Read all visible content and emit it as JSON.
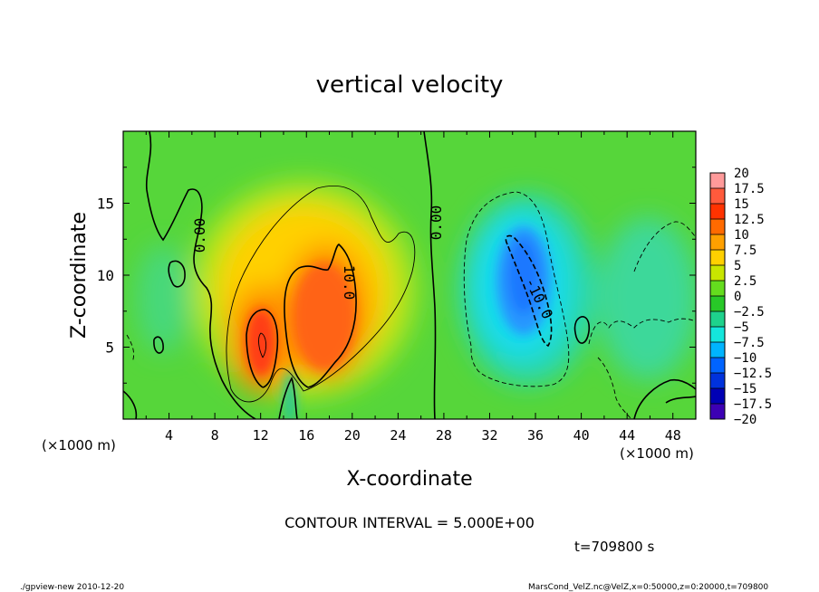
{
  "chart_data": {
    "type": "heatmap",
    "title": "vertical velocity",
    "xlabel": "X-coordinate",
    "ylabel": "Z-coordinate",
    "x_unit_label": "(×1000 m)",
    "y_unit_label": "(×1000 m)",
    "xlim": [
      0,
      50
    ],
    "ylim": [
      0,
      20
    ],
    "x_ticks": [
      4,
      8,
      12,
      16,
      20,
      24,
      28,
      32,
      36,
      40,
      44,
      48
    ],
    "y_ticks": [
      5,
      10,
      15
    ],
    "contour_interval_text": "CONTOUR INTERVAL = 5.000E+00",
    "contour_labels": [
      {
        "text": "0.00",
        "x": 7.3,
        "z": 13.0
      },
      {
        "text": "0.00",
        "x": 27.6,
        "z": 13.6
      },
      {
        "text": "10.0",
        "x": 19.7,
        "z": 9.0
      },
      {
        "text": "-10.0",
        "x": 36.3,
        "z": 7.8
      }
    ],
    "features": [
      {
        "name": "updraft core",
        "x_center": 12.2,
        "z_center": 5.5,
        "max_value": 15
      },
      {
        "name": "updraft",
        "x_center": 18.0,
        "z_center": 7.5,
        "max_value": 12.5
      },
      {
        "name": "downdraft",
        "x_center": 35.0,
        "z_center": 8.0,
        "min_value": -12.5
      }
    ],
    "colorbar": {
      "levels": [
        "20",
        "17.5",
        "15",
        "12.5",
        "10",
        "7.5",
        "5",
        "2.5",
        "0",
        "−2.5",
        "−5",
        "−7.5",
        "−10",
        "−12.5",
        "−15",
        "−17.5",
        "−20"
      ],
      "colors": [
        "#ff9a9a",
        "#ff5a3c",
        "#ff3300",
        "#ff6a00",
        "#ffa000",
        "#ffd000",
        "#c8e600",
        "#64dc1e",
        "#28c828",
        "#1ed28c",
        "#14e6dc",
        "#00b4ff",
        "#0064ff",
        "#0032dc",
        "#0000b4",
        "#3c00b4",
        "#6e00b4"
      ]
    }
  },
  "footer": {
    "time_text": "t=709800 s",
    "program_text": "./gpview-new  2010-12-20",
    "file_text": "MarsCond_VelZ.nc@VelZ,x=0:50000,z=0:20000,t=709800"
  }
}
